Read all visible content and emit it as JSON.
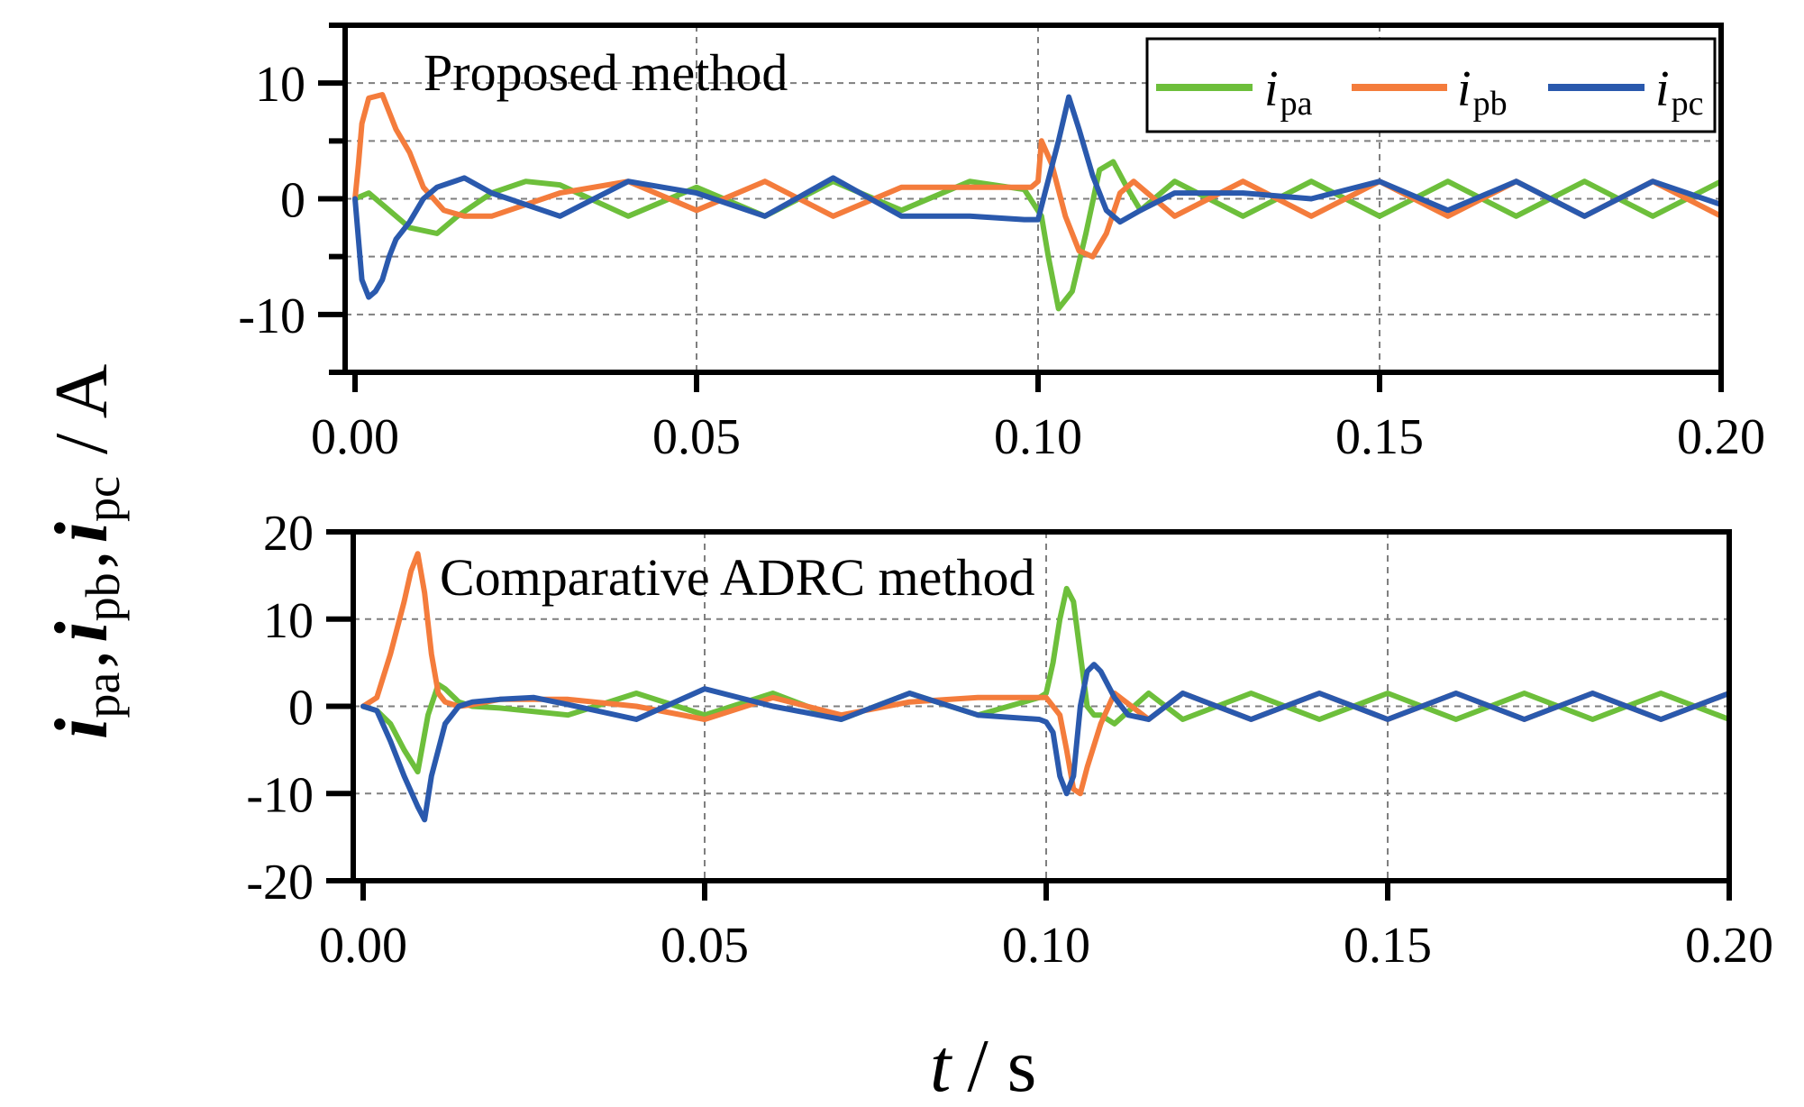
{
  "colors": {
    "ipa": "#6dbf3b",
    "ipb": "#f47c3c",
    "ipc": "#2a59ad"
  },
  "y_axis_title": {
    "i": "i",
    "pa": "pa",
    "pb": "pb",
    "pc": "pc",
    "comma": ",",
    "unit": "/ A"
  },
  "x_axis_title": {
    "t": "t",
    "unit": "/ s"
  },
  "legend": [
    {
      "key": "ipa",
      "symbol": "i",
      "subscript": "pa",
      "icon": "legend-line"
    },
    {
      "key": "ipb",
      "symbol": "i",
      "subscript": "pb",
      "icon": "legend-line"
    },
    {
      "key": "ipc",
      "symbol": "i",
      "subscript": "pc",
      "icon": "legend-line"
    }
  ],
  "chart_data": [
    {
      "type": "line",
      "title": "Proposed method",
      "xlabel": "t / s",
      "ylabel": "ipa, ipb, ipc / A",
      "xlim": [
        0.0,
        0.2
      ],
      "ylim": [
        -15,
        15
      ],
      "xticks": [
        "0.00",
        "0.05",
        "0.10",
        "0.15",
        "0.20"
      ],
      "yticks": [
        {
          "value": 10,
          "label": "10"
        },
        {
          "value": 0,
          "label": "0"
        },
        {
          "value": -10,
          "label": "-10"
        }
      ],
      "minor_yticks": [
        -15,
        -5,
        5,
        15
      ],
      "grid": true,
      "legend_position": "top-right",
      "series": [
        {
          "name": "ipa",
          "x": [
            0,
            0.002,
            0.005,
            0.008,
            0.012,
            0.015,
            0.02,
            0.025,
            0.03,
            0.04,
            0.05,
            0.06,
            0.07,
            0.08,
            0.09,
            0.098,
            0.1005,
            0.1015,
            0.103,
            0.105,
            0.107,
            0.109,
            0.111,
            0.113,
            0.115,
            0.12,
            0.13,
            0.14,
            0.15,
            0.16,
            0.17,
            0.18,
            0.19,
            0.2
          ],
          "y": [
            0,
            0.5,
            -1.0,
            -2.5,
            -3.0,
            -1.5,
            0.5,
            1.5,
            1.2,
            -1.5,
            1.0,
            -1.5,
            1.5,
            -1.0,
            1.5,
            0.8,
            -1.5,
            -5.0,
            -9.5,
            -8.0,
            -3.0,
            2.5,
            3.2,
            1.0,
            -1.0,
            1.5,
            -1.5,
            1.5,
            -1.5,
            1.5,
            -1.5,
            1.5,
            -1.5,
            1.5
          ]
        },
        {
          "name": "ipb",
          "x": [
            0,
            0.0005,
            0.001,
            0.002,
            0.004,
            0.005,
            0.006,
            0.008,
            0.01,
            0.013,
            0.016,
            0.02,
            0.03,
            0.04,
            0.05,
            0.06,
            0.07,
            0.08,
            0.09,
            0.099,
            0.1,
            0.1005,
            0.102,
            0.104,
            0.106,
            0.108,
            0.11,
            0.112,
            0.114,
            0.12,
            0.13,
            0.14,
            0.15,
            0.16,
            0.17,
            0.18,
            0.19,
            0.2
          ],
          "y": [
            0,
            3.0,
            6.5,
            8.7,
            9.0,
            7.5,
            6.0,
            4.0,
            1.0,
            -1.0,
            -1.5,
            -1.5,
            0.5,
            1.5,
            -1.0,
            1.5,
            -1.5,
            1.0,
            1.0,
            1.0,
            1.5,
            5.0,
            3.0,
            -1.5,
            -4.5,
            -5.0,
            -3.0,
            0.5,
            1.5,
            -1.5,
            1.5,
            -1.5,
            1.5,
            -1.5,
            1.5,
            -1.5,
            1.5,
            -1.5
          ]
        },
        {
          "name": "ipc",
          "x": [
            0,
            0.0005,
            0.001,
            0.002,
            0.003,
            0.004,
            0.005,
            0.006,
            0.008,
            0.01,
            0.012,
            0.016,
            0.02,
            0.03,
            0.04,
            0.05,
            0.06,
            0.07,
            0.08,
            0.09,
            0.098,
            0.1,
            0.101,
            0.103,
            0.1045,
            0.106,
            0.108,
            0.11,
            0.112,
            0.115,
            0.12,
            0.13,
            0.14,
            0.15,
            0.16,
            0.17,
            0.18,
            0.19,
            0.2
          ],
          "y": [
            0,
            -3.5,
            -7.0,
            -8.5,
            -8.0,
            -7.0,
            -5.0,
            -3.5,
            -2.0,
            0.0,
            1.0,
            1.8,
            0.5,
            -1.5,
            1.5,
            0.5,
            -1.5,
            1.8,
            -1.5,
            -1.5,
            -1.8,
            -1.8,
            0.5,
            5.0,
            8.8,
            6.0,
            2.0,
            -1.0,
            -2.0,
            -1.0,
            0.5,
            0.5,
            0.0,
            1.5,
            -1.0,
            1.5,
            -1.5,
            1.5,
            -0.5
          ]
        }
      ]
    },
    {
      "type": "line",
      "title": "Comparative ADRC method",
      "xlabel": "t / s",
      "ylabel": "ipa, ipb, ipc / A",
      "xlim": [
        0.0,
        0.2
      ],
      "ylim": [
        -20,
        20
      ],
      "xticks": [
        "0.00",
        "0.05",
        "0.10",
        "0.15",
        "0.20"
      ],
      "yticks": [
        {
          "value": 20,
          "label": "20"
        },
        {
          "value": 10,
          "label": "10"
        },
        {
          "value": 0,
          "label": "0"
        },
        {
          "value": -10,
          "label": "-10"
        },
        {
          "value": -20,
          "label": "-20"
        }
      ],
      "minor_yticks": [],
      "grid": true,
      "legend_position": "none",
      "series": [
        {
          "name": "ipa",
          "x": [
            0,
            0.002,
            0.004,
            0.006,
            0.008,
            0.0095,
            0.011,
            0.012,
            0.014,
            0.016,
            0.02,
            0.03,
            0.04,
            0.05,
            0.06,
            0.07,
            0.08,
            0.09,
            0.099,
            0.1,
            0.101,
            0.102,
            0.103,
            0.104,
            0.105,
            0.106,
            0.107,
            0.108,
            0.11,
            0.115,
            0.12,
            0.13,
            0.14,
            0.15,
            0.16,
            0.17,
            0.18,
            0.19,
            0.2
          ],
          "y": [
            0,
            -0.5,
            -2.0,
            -5.0,
            -7.5,
            -1.0,
            2.5,
            2.0,
            0.5,
            0,
            -0.2,
            -1.0,
            1.5,
            -1.0,
            1.5,
            -1.5,
            1.5,
            -1.0,
            1.0,
            1.5,
            5.0,
            10.0,
            13.5,
            12.0,
            6.0,
            0.0,
            -1.0,
            -1.0,
            -2.0,
            1.5,
            -1.5,
            1.5,
            -1.5,
            1.5,
            -1.5,
            1.5,
            -1.5,
            1.5,
            -1.5
          ]
        },
        {
          "name": "ipb",
          "x": [
            0,
            0.002,
            0.004,
            0.006,
            0.007,
            0.008,
            0.009,
            0.01,
            0.011,
            0.012,
            0.014,
            0.016,
            0.02,
            0.03,
            0.04,
            0.05,
            0.06,
            0.07,
            0.08,
            0.09,
            0.099,
            0.1,
            0.102,
            0.103,
            0.104,
            0.105,
            0.106,
            0.108,
            0.11,
            0.115,
            0.12,
            0.13,
            0.14,
            0.15,
            0.16,
            0.17,
            0.18,
            0.19,
            0.2
          ],
          "y": [
            0,
            1.0,
            6.0,
            12.0,
            15.5,
            17.5,
            13.0,
            6.0,
            1.5,
            0.5,
            0,
            0.2,
            0.8,
            0.8,
            0,
            -1.5,
            1.0,
            -1.0,
            0.5,
            1.0,
            1.0,
            1.0,
            -1.0,
            -5.0,
            -9.5,
            -10.0,
            -7.0,
            -2.0,
            1.5,
            -1.5,
            1.5,
            -1.5,
            1.5,
            -1.5,
            1.5,
            -1.5,
            1.5,
            -1.5,
            1.5
          ]
        },
        {
          "name": "ipc",
          "x": [
            0,
            0.002,
            0.004,
            0.006,
            0.008,
            0.009,
            0.01,
            0.012,
            0.014,
            0.016,
            0.02,
            0.025,
            0.03,
            0.04,
            0.05,
            0.06,
            0.07,
            0.08,
            0.09,
            0.099,
            0.1,
            0.101,
            0.102,
            0.103,
            0.104,
            0.105,
            0.106,
            0.107,
            0.108,
            0.11,
            0.112,
            0.115,
            0.12,
            0.13,
            0.14,
            0.15,
            0.16,
            0.17,
            0.18,
            0.19,
            0.2
          ],
          "y": [
            0,
            -0.5,
            -4.0,
            -8.0,
            -11.5,
            -13.0,
            -8.0,
            -2.0,
            0.0,
            0.5,
            0.8,
            1.0,
            0.2,
            -1.5,
            2.0,
            0.0,
            -1.5,
            1.5,
            -1.0,
            -1.5,
            -1.8,
            -3.0,
            -8.0,
            -10.0,
            -8.0,
            0.0,
            4.0,
            4.8,
            4.0,
            1.0,
            -1.0,
            -1.5,
            1.5,
            -1.5,
            1.5,
            -1.5,
            1.5,
            -1.5,
            1.5,
            -1.5,
            1.5
          ]
        }
      ]
    }
  ]
}
